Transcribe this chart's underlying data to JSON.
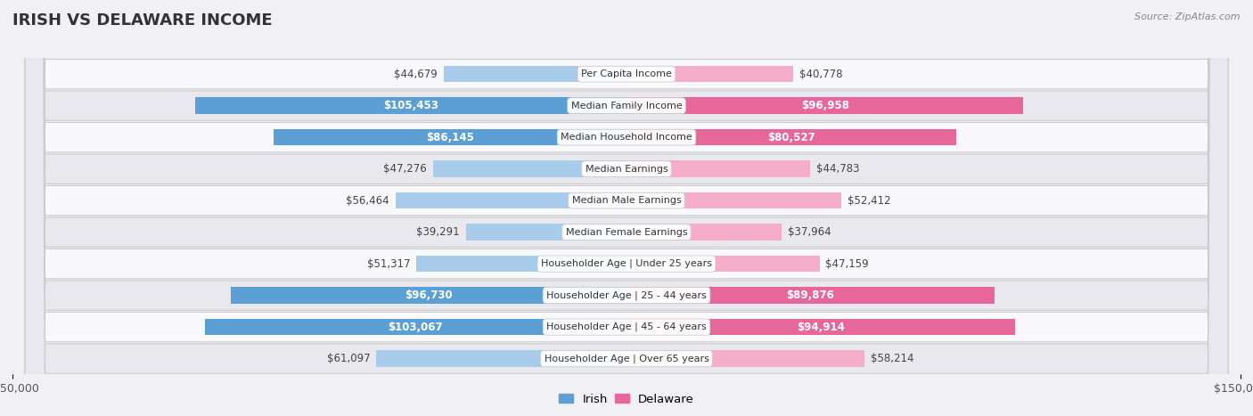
{
  "title": "IRISH VS DELAWARE INCOME",
  "source": "Source: ZipAtlas.com",
  "categories": [
    "Per Capita Income",
    "Median Family Income",
    "Median Household Income",
    "Median Earnings",
    "Median Male Earnings",
    "Median Female Earnings",
    "Householder Age | Under 25 years",
    "Householder Age | 25 - 44 years",
    "Householder Age | 45 - 64 years",
    "Householder Age | Over 65 years"
  ],
  "irish_values": [
    44679,
    105453,
    86145,
    47276,
    56464,
    39291,
    51317,
    96730,
    103067,
    61097
  ],
  "delaware_values": [
    40778,
    96958,
    80527,
    44783,
    52412,
    37964,
    47159,
    89876,
    94914,
    58214
  ],
  "irish_color_light": "#A8CCEA",
  "irish_color_dark": "#5B9FD4",
  "delaware_color_light": "#F5AECA",
  "delaware_color_dark": "#E8679A",
  "irish_label_threshold": 75000,
  "delaware_label_threshold": 75000,
  "max_value": 150000,
  "bg_color": "#f0f0f5",
  "row_bg_white": "#f9f9fb",
  "row_bg_gray": "#e8e8ee",
  "label_fontsize": 8.5,
  "title_fontsize": 13,
  "bar_height": 0.52
}
